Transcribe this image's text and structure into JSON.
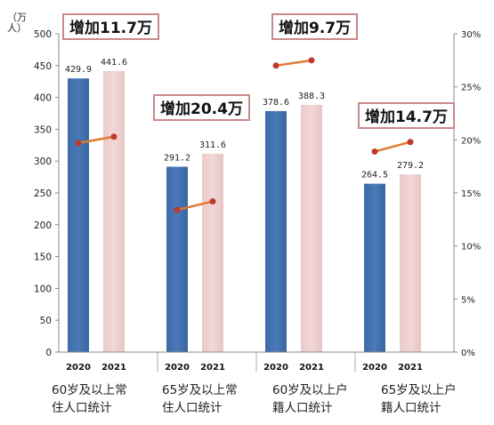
{
  "chart_data": {
    "type": "bar",
    "ylabel": "（万人）",
    "ylim": [
      0,
      500
    ],
    "y_ticks": [
      "0",
      "50",
      "100",
      "150",
      "200",
      "250",
      "300",
      "350",
      "400",
      "450",
      "500"
    ],
    "y2lim": [
      0,
      30
    ],
    "y2_ticks": [
      "0%",
      "5%",
      "10%",
      "15%",
      "20%",
      "25%",
      "30%"
    ],
    "categories": [
      "60岁及以上常\n住人口统计",
      "65岁及以上常\n住人口统计",
      "60岁及以上户\n籍人口统计",
      "65岁及以上户\n籍人口统计"
    ],
    "year_labels": [
      "2020",
      "2021"
    ],
    "series": [
      {
        "name": "2020",
        "values": [
          429.9,
          291.2,
          378.6,
          264.5
        ],
        "labels": [
          "429.9",
          "291.2",
          "378.6",
          "264.5"
        ]
      },
      {
        "name": "2021",
        "values": [
          441.6,
          311.6,
          388.3,
          279.2
        ],
        "labels": [
          "441.6",
          "311.6",
          "388.3",
          "279.2"
        ]
      }
    ],
    "ratio_lines": [
      {
        "values": [
          19.7,
          20.3
        ]
      },
      {
        "values": [
          13.4,
          14.2
        ]
      },
      {
        "values": [
          27.0,
          27.5
        ]
      },
      {
        "values": [
          18.9,
          19.8
        ]
      }
    ],
    "annotations": [
      "增加11.7万",
      "增加20.4万",
      "增加9.7万",
      "增加14.7万"
    ],
    "grid": false,
    "colors": {
      "bar2020": "#4a7ab8",
      "bar2021": "#f2d8d8",
      "line": "#e07a2e",
      "annotation_border": "#c98a8a"
    }
  }
}
